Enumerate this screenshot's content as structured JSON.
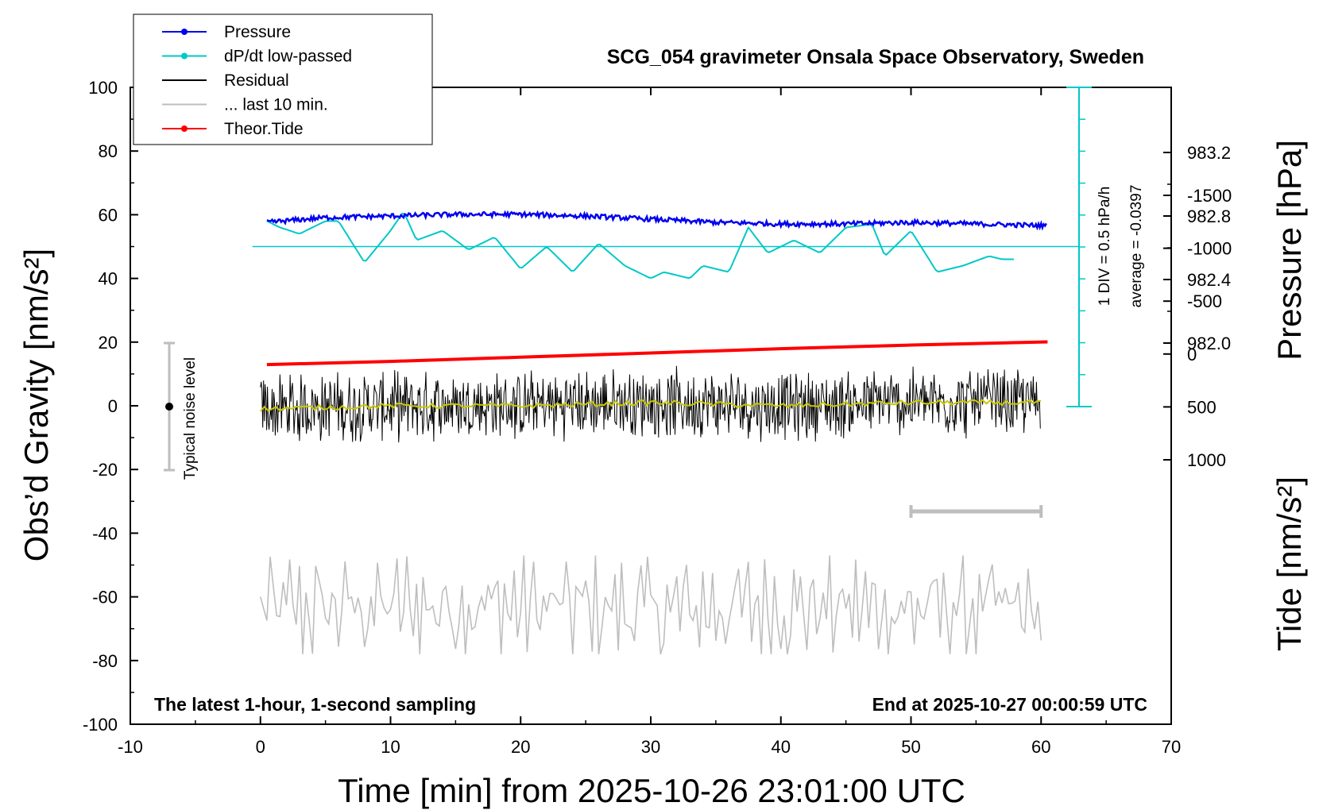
{
  "chart_data": {
    "type": "line",
    "title": "SCG_054 gravimeter Onsala Space Observatory, Sweden",
    "xlabel": "Time [min] from 2025-10-26 23:01:00 UTC",
    "ylabel_left": "Obs’d Gravity [nm/s²]",
    "ylabel_pressure": "Pressure [hPa]",
    "ylabel_tide": "Tide [nm/s²]",
    "xlim": [
      -10,
      70
    ],
    "ylim": [
      -100,
      100
    ],
    "x_ticks": [
      "-10",
      "0",
      "10",
      "20",
      "30",
      "40",
      "50",
      "60",
      "70"
    ],
    "y_ticks": [
      "100",
      "80",
      "60",
      "40",
      "20",
      "0",
      "-20",
      "-40",
      "-60",
      "-80",
      "-100"
    ],
    "pressure_ticks": [
      "983.2",
      "982.8",
      "982.4",
      "982.0"
    ],
    "pressure_tick_values": [
      983.2,
      982.8,
      982.4,
      982.0
    ],
    "tide_ticks": [
      "1000",
      "500",
      "0",
      "-500",
      "-1000",
      "-1500"
    ],
    "tide_tick_values": [
      1000,
      500,
      0,
      -500,
      -1000,
      -1500
    ],
    "legend": [
      {
        "label": "Pressure",
        "color": "#0000ee",
        "marker": true
      },
      {
        "label": "dP/dt low-passed",
        "color": "#00c8c8",
        "marker": true
      },
      {
        "label": "Residual",
        "color": "#000000",
        "marker": false
      },
      {
        "label": "... last 10 min.",
        "color": "#bebebe",
        "marker": false
      },
      {
        "label": "Theor.Tide",
        "color": "#ff0000",
        "marker": true
      }
    ],
    "noise_label": "Typical noise level",
    "noise_range": [
      -20,
      20
    ],
    "dpdt_scale_label": "1 DIV = 0.5 hPa/h",
    "dpdt_average_label": "average = -0.0397",
    "bottom_left_note": "The latest 1-hour, 1-second sampling",
    "bottom_right_note": "End at 2025-10-27 00:00:59 UTC",
    "last_10min_range_min": [
      50,
      60
    ],
    "series": [
      {
        "name": "Pressure",
        "color": "#0000ee",
        "unit": "hPa",
        "x": [
          0.5,
          5,
          10,
          15,
          20,
          25,
          30,
          35,
          40,
          45,
          50,
          55,
          60
        ],
        "values": [
          982.76,
          982.79,
          982.8,
          982.81,
          982.81,
          982.8,
          982.78,
          982.76,
          982.75,
          982.75,
          982.76,
          982.75,
          982.74
        ]
      },
      {
        "name": "dP/dt low-passed",
        "color": "#00c8c8",
        "x": [
          0.5,
          1.5,
          3,
          5,
          6,
          8,
          10,
          11,
          12,
          14,
          16,
          18,
          20,
          22,
          24,
          26,
          28,
          30,
          31,
          33,
          34,
          36,
          37.5,
          39,
          41,
          43,
          45,
          47,
          48,
          50,
          52,
          54,
          56,
          57,
          58
        ],
        "values": [
          58,
          56,
          54,
          58,
          58,
          45,
          55,
          61,
          52,
          55,
          49,
          53,
          43,
          50,
          42,
          51,
          44,
          40,
          42,
          40,
          44,
          42,
          56,
          48,
          52,
          48,
          56,
          57,
          47,
          55,
          42,
          44,
          47,
          46,
          46
        ]
      },
      {
        "name": "Residual",
        "color": "#000000",
        "x": [
          0,
          10,
          20,
          30,
          40,
          50,
          60
        ],
        "values": [
          -1,
          0,
          0,
          1,
          0,
          1,
          1
        ],
        "envelope": [
          -12,
          12
        ]
      },
      {
        "name": "... last 10 min.",
        "color": "#bebebe",
        "x": [
          0,
          10,
          20,
          30,
          40,
          50,
          60
        ],
        "values": [
          -64,
          -63,
          -63,
          -64,
          -63,
          -64,
          -64
        ],
        "envelope": [
          -78,
          -47
        ]
      },
      {
        "name": "Theor.Tide",
        "color": "#ff0000",
        "unit": "nm/s²",
        "x": [
          0.5,
          10,
          20,
          30,
          40,
          50,
          60.5
        ],
        "values": [
          100,
          70,
          30,
          -10,
          -50,
          -85,
          -115
        ]
      }
    ]
  }
}
